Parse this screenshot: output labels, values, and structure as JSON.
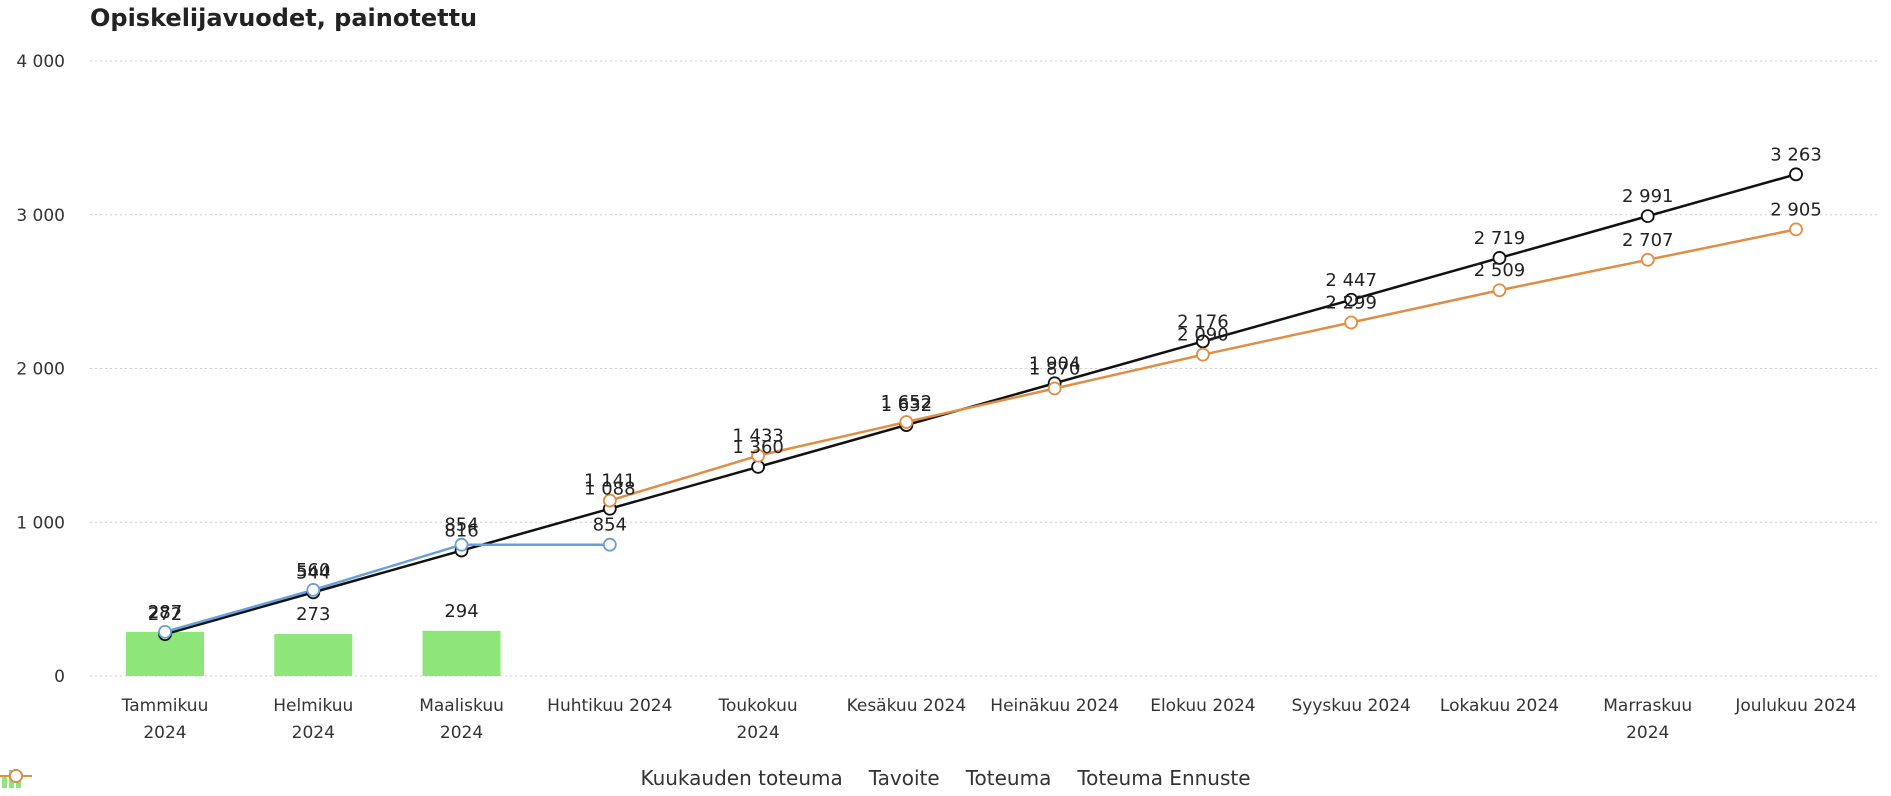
{
  "chart_data": {
    "type": "line",
    "title": "Opiskelijavuodet, painotettu",
    "xlabel": "",
    "ylabel": "",
    "ylim": [
      0,
      4000
    ],
    "yticks": [
      0,
      1000,
      2000,
      3000,
      4000
    ],
    "ytick_labels": [
      "0",
      "1 000",
      "2 000",
      "3 000",
      "4 000"
    ],
    "grid": "horizontal dotted",
    "legend_position": "bottom-center",
    "categories": [
      [
        "Tammikuu",
        "2024"
      ],
      [
        "Helmikuu",
        "2024"
      ],
      [
        "Maaliskuu",
        "2024"
      ],
      [
        "Huhtikuu 2024"
      ],
      [
        "Toukokuu",
        "2024"
      ],
      [
        "Kesäkuu 2024"
      ],
      [
        "Heinäkuu 2024"
      ],
      [
        "Elokuu 2024"
      ],
      [
        "Syyskuu 2024"
      ],
      [
        "Lokakuu 2024"
      ],
      [
        "Marraskuu",
        "2024"
      ],
      [
        "Joulukuu 2024"
      ]
    ],
    "series": [
      {
        "name": "Kuukauden toteuma",
        "type": "bar",
        "color": "#8ee57a",
        "values": [
          287,
          273,
          294,
          null,
          null,
          null,
          null,
          null,
          null,
          null,
          null,
          null
        ],
        "labels": [
          "287",
          "273",
          "294",
          null,
          null,
          null,
          null,
          null,
          null,
          null,
          null,
          null
        ]
      },
      {
        "name": "Tavoite",
        "type": "line",
        "color": "#111111",
        "values": [
          272,
          544,
          816,
          1088,
          1360,
          1632,
          1904,
          2176,
          2447,
          2719,
          2991,
          3263
        ],
        "labels": [
          "272",
          "544",
          "816",
          "1 088",
          "1 360",
          "1 632",
          "1 904",
          "2 176",
          "2 447",
          "2 719",
          "2 991",
          "3 263"
        ]
      },
      {
        "name": "Toteuma",
        "type": "line",
        "color": "#6a9fd8",
        "values": [
          287,
          560,
          854,
          854,
          null,
          null,
          null,
          null,
          null,
          null,
          null,
          null
        ],
        "labels": [
          "287",
          "560",
          "854",
          "854",
          null,
          null,
          null,
          null,
          null,
          null,
          null,
          null
        ]
      },
      {
        "name": "Toteuma Ennuste",
        "type": "line",
        "color": "#e08e45",
        "values": [
          null,
          null,
          null,
          1141,
          1433,
          1652,
          1870,
          2090,
          2299,
          2509,
          2707,
          2905
        ],
        "labels": [
          null,
          null,
          null,
          "1 141",
          "1 433",
          "1 652",
          "1 870",
          "2 090",
          "2 299",
          "2 509",
          "2 707",
          "2 905"
        ]
      }
    ]
  }
}
